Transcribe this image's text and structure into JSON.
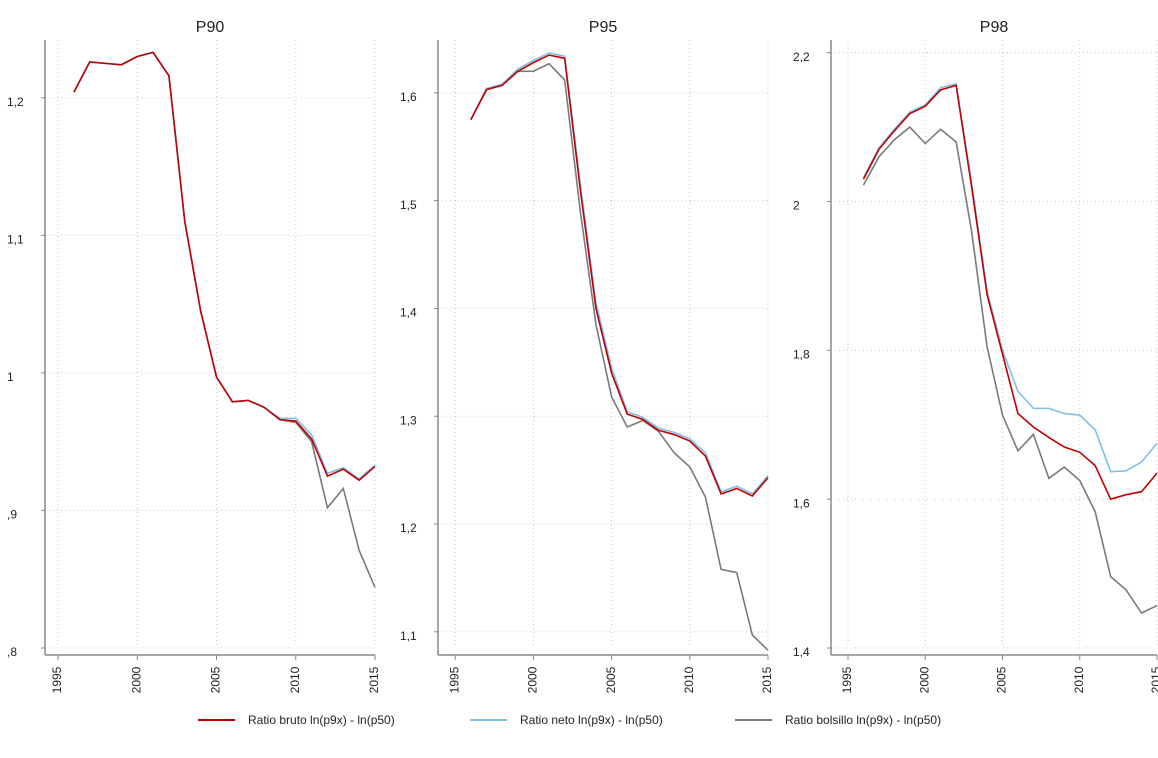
{
  "chart_data": [
    {
      "type": "line",
      "title": "P90",
      "x": [
        1996,
        1997,
        1998,
        1999,
        2000,
        2001,
        2002,
        2003,
        2004,
        2005,
        2006,
        2007,
        2008,
        2009,
        2010,
        2011,
        2012,
        2013,
        2014,
        2015
      ],
      "xlim": [
        1994.18,
        2015
      ],
      "xticks": [
        1995,
        2000,
        2005,
        2010,
        2015
      ],
      "ylim": [
        0.8,
        1.242
      ],
      "yticks": [
        {
          "value": 0.8,
          "label": ",8"
        },
        {
          "value": 0.9,
          "label": ",9"
        },
        1,
        {
          "value": 1.1,
          "label": "1,1"
        },
        {
          "value": 1.2,
          "label": "1,2"
        }
      ],
      "grid": true,
      "series": [
        {
          "name": "Ratio bruto ln(p9x) - ln(p50)",
          "color": "#c00000",
          "values": [
            1.204,
            1.226,
            1.225,
            1.224,
            1.23,
            1.233,
            1.216,
            1.11,
            1.045,
            0.997,
            0.979,
            0.98,
            0.975,
            0.966,
            0.965,
            0.952,
            0.925,
            0.93,
            0.922,
            0.932
          ]
        },
        {
          "name": "Ratio neto ln(p9x) - ln(p50)",
          "color": "#7fbfe8",
          "values": [
            1.204,
            1.226,
            1.225,
            1.224,
            1.23,
            1.233,
            1.216,
            1.11,
            1.045,
            0.997,
            0.979,
            0.98,
            0.975,
            0.967,
            0.967,
            0.955,
            0.927,
            0.931,
            0.923,
            0.933
          ]
        },
        {
          "name": "Ratio bolsillo ln(p9x) - ln(p50)",
          "color": "#7a7a7a",
          "values": [
            1.204,
            1.226,
            1.225,
            1.224,
            1.23,
            1.233,
            1.216,
            1.11,
            1.045,
            0.997,
            0.979,
            0.98,
            0.975,
            0.966,
            0.964,
            0.95,
            0.902,
            0.916,
            0.871,
            0.844
          ]
        }
      ]
    },
    {
      "type": "line",
      "title": "P95",
      "x": [
        1996,
        1997,
        1998,
        1999,
        2000,
        2001,
        2002,
        2003,
        2004,
        2005,
        2006,
        2007,
        2008,
        2009,
        2010,
        2011,
        2012,
        2013,
        2014,
        2015
      ],
      "xlim": [
        1993.9,
        2015
      ],
      "xticks": [
        1995,
        2000,
        2005,
        2010,
        2015
      ],
      "ylim": [
        1.085,
        1.649
      ],
      "yticks": [
        {
          "value": 1.1,
          "label": "1,1"
        },
        {
          "value": 1.2,
          "label": "1,2"
        },
        {
          "value": 1.3,
          "label": "1,3"
        },
        {
          "value": 1.4,
          "label": "1,4"
        },
        {
          "value": 1.5,
          "label": "1,5"
        },
        {
          "value": 1.6,
          "label": "1,6"
        }
      ],
      "grid": true,
      "series": [
        {
          "name": "Ratio bruto ln(p9x) - ln(p50)",
          "color": "#c00000",
          "values": [
            1.575,
            1.603,
            1.607,
            1.62,
            1.628,
            1.635,
            1.632,
            1.51,
            1.4,
            1.34,
            1.302,
            1.297,
            1.287,
            1.283,
            1.277,
            1.263,
            1.228,
            1.233,
            1.226,
            1.243
          ]
        },
        {
          "name": "Ratio neto ln(p9x) - ln(p50)",
          "color": "#7fbfe8",
          "values": [
            1.575,
            1.604,
            1.608,
            1.622,
            1.63,
            1.637,
            1.634,
            1.515,
            1.405,
            1.345,
            1.304,
            1.299,
            1.289,
            1.285,
            1.279,
            1.266,
            1.23,
            1.235,
            1.228,
            1.245
          ]
        },
        {
          "name": "Ratio bolsillo ln(p9x) - ln(p50)",
          "color": "#7a7a7a",
          "values": [
            1.575,
            1.603,
            1.607,
            1.62,
            1.62,
            1.627,
            1.612,
            1.49,
            1.385,
            1.318,
            1.29,
            1.296,
            1.286,
            1.266,
            1.253,
            1.225,
            1.158,
            1.155,
            1.097,
            1.083
          ]
        }
      ]
    },
    {
      "type": "line",
      "title": "P98",
      "x": [
        1996,
        1997,
        1998,
        1999,
        2000,
        2001,
        2002,
        2003,
        2004,
        2005,
        2006,
        2007,
        2008,
        2009,
        2010,
        2011,
        2012,
        2013,
        2014,
        2015
      ],
      "xlim": [
        1993.9,
        2015
      ],
      "xticks": [
        1995,
        2000,
        2005,
        2010,
        2015
      ],
      "ylim": [
        1.4,
        2.217
      ],
      "yticks": [
        {
          "value": 1.4,
          "label": "1,4"
        },
        {
          "value": 1.6,
          "label": "1,6"
        },
        {
          "value": 1.8,
          "label": "1,8"
        },
        2,
        {
          "value": 2.2,
          "label": "2,2"
        }
      ],
      "grid": true,
      "series": [
        {
          "name": "Ratio bruto ln(p9x) - ln(p50)",
          "color": "#c00000",
          "values": [
            2.03,
            2.07,
            2.095,
            2.118,
            2.128,
            2.15,
            2.156,
            2.02,
            1.875,
            1.795,
            1.715,
            1.697,
            1.683,
            1.67,
            1.663,
            1.645,
            1.6,
            1.606,
            1.61,
            1.635
          ]
        },
        {
          "name": "Ratio neto ln(p9x) - ln(p50)",
          "color": "#7fbfe8",
          "values": [
            2.032,
            2.072,
            2.097,
            2.12,
            2.13,
            2.153,
            2.158,
            2.025,
            1.88,
            1.8,
            1.745,
            1.722,
            1.722,
            1.715,
            1.713,
            1.693,
            1.637,
            1.638,
            1.65,
            1.675
          ]
        },
        {
          "name": "Ratio bolsillo ln(p9x) - ln(p50)",
          "color": "#7a7a7a",
          "values": [
            2.022,
            2.06,
            2.083,
            2.1,
            2.078,
            2.097,
            2.08,
            1.96,
            1.805,
            1.713,
            1.665,
            1.687,
            1.628,
            1.643,
            1.625,
            1.583,
            1.496,
            1.478,
            1.447,
            1.457
          ]
        }
      ]
    }
  ]
}
